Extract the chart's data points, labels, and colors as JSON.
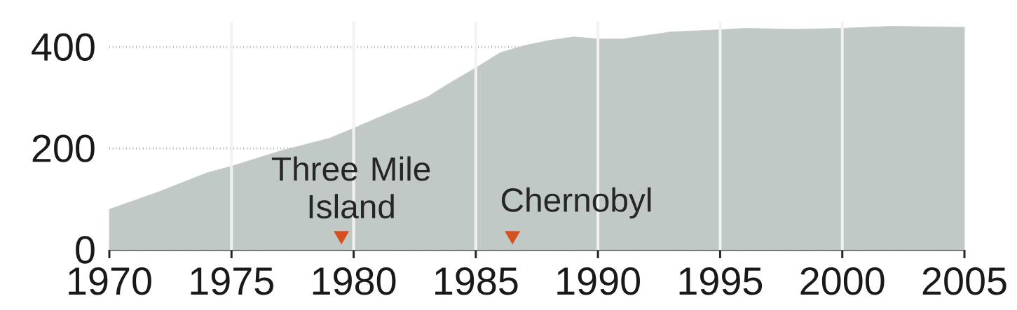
{
  "chart_data": {
    "type": "area",
    "x": [
      1970,
      1972,
      1974,
      1975,
      1977,
      1979,
      1980,
      1982,
      1983,
      1984,
      1985,
      1986,
      1987,
      1988,
      1989,
      1990,
      1991,
      1992,
      1993,
      1995,
      1996,
      1998,
      2000,
      2002,
      2005
    ],
    "series": [
      {
        "type": "scatter",
        "marker": "triangle",
        "color": "#d4501f",
        "x": [
          1979.5,
          1986.5
        ],
        "values": [
          28,
          28
        ]
      },
      {
        "color": "#c1c9c6",
        "values": [
          80,
          114,
          152,
          165,
          195,
          220,
          240,
          281,
          301,
          331,
          359,
          389,
          403,
          413,
          420,
          416,
          416,
          423,
          430,
          434,
          437,
          435,
          437,
          441,
          439
        ]
      }
    ],
    "xlim": [
      1970,
      2005
    ],
    "xticks": [
      1970,
      1975,
      1980,
      1985,
      1990,
      1995,
      2000,
      2005
    ],
    "ylim": [
      0,
      450
    ],
    "yticks": [
      0,
      200,
      400
    ],
    "grid": true,
    "annotations": [
      {
        "text": "Three Mile Island",
        "x": 1979.5,
        "y": 28
      },
      {
        "text": "Chernobyl",
        "x": 1986.5,
        "y": 28
      }
    ]
  }
}
